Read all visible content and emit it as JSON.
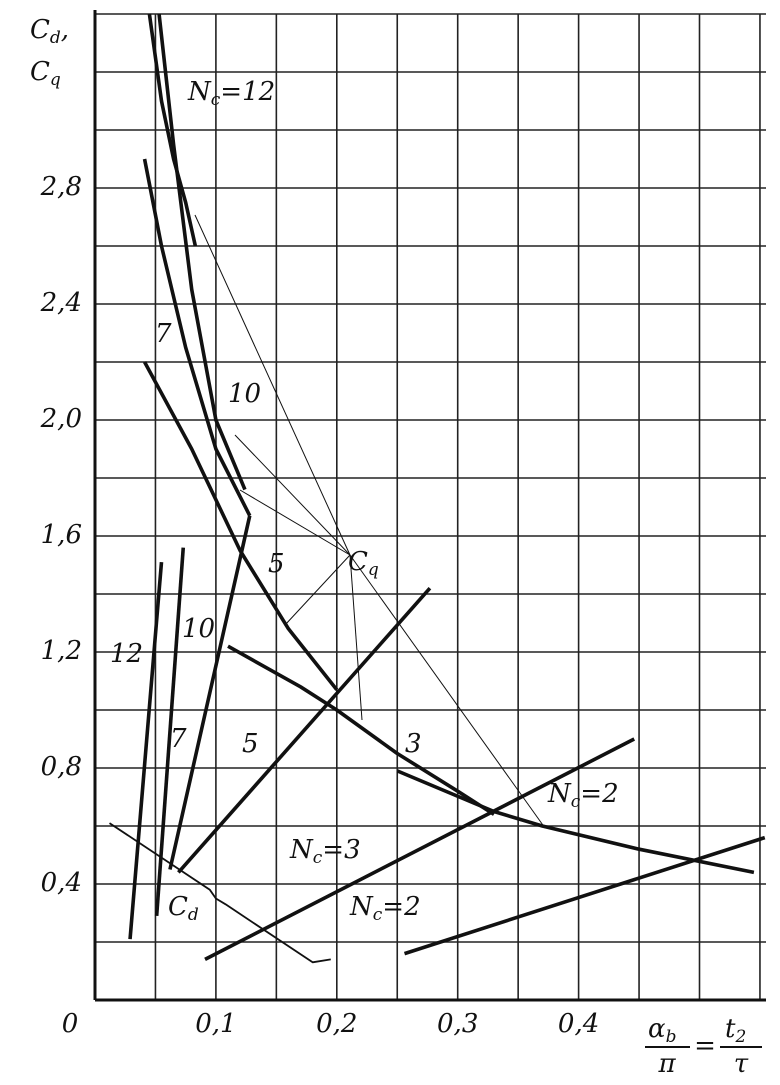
{
  "chart_data": {
    "type": "line",
    "y_label": [
      {
        "main": "C",
        "sub": "d",
        "tail": ","
      },
      {
        "main": "C",
        "sub": "q"
      }
    ],
    "x_label": {
      "num1": "α",
      "sub1": "b",
      "den1": "π",
      "eq": "=",
      "num2": "t",
      "sub2": "2",
      "den2": "τ"
    },
    "xlim": [
      0,
      0.555
    ],
    "ylim": [
      0,
      3.4
    ],
    "xticks": [
      {
        "value": 0,
        "label": "0"
      },
      {
        "value": 0.1,
        "label": "0,1"
      },
      {
        "value": 0.2,
        "label": "0,2"
      },
      {
        "value": 0.3,
        "label": "0,3"
      },
      {
        "value": 0.4,
        "label": "0,4"
      }
    ],
    "yticks": [
      {
        "value": 0.4,
        "label": "0,4"
      },
      {
        "value": 0.8,
        "label": "0,8"
      },
      {
        "value": 1.2,
        "label": "1,2"
      },
      {
        "value": 1.6,
        "label": "1,6"
      },
      {
        "value": 2.0,
        "label": "2,0"
      },
      {
        "value": 2.4,
        "label": "2,4"
      },
      {
        "value": 2.8,
        "label": "2,8"
      }
    ],
    "x_grid": [
      0.05,
      0.1,
      0.15,
      0.2,
      0.25,
      0.3,
      0.35,
      0.4,
      0.45,
      0.5,
      0.55
    ],
    "y_grid": [
      0.2,
      0.4,
      0.6,
      0.8,
      1.0,
      1.2,
      1.4,
      1.6,
      1.8,
      2.0,
      2.2,
      2.4,
      2.6,
      2.8,
      3.0,
      3.2,
      3.4
    ],
    "grid": true,
    "color": "#111111",
    "annotation": {
      "main": "C",
      "sub": "q"
    },
    "series": [
      {
        "group": "Cq",
        "label": {
          "main": "N",
          "sub": "c",
          "rest": "=12"
        },
        "x": [
          0.045,
          0.055,
          0.065,
          0.075,
          0.083
        ],
        "values": [
          3.4,
          3.1,
          2.9,
          2.75,
          2.6
        ]
      },
      {
        "group": "Cq",
        "label": {
          "main": "10"
        },
        "x": [
          0.053,
          0.065,
          0.08,
          0.1,
          0.124
        ],
        "values": [
          3.4,
          2.95,
          2.45,
          2.0,
          1.76
        ]
      },
      {
        "group": "Cq",
        "label": {
          "main": "7"
        },
        "x": [
          0.041,
          0.055,
          0.075,
          0.1,
          0.128
        ],
        "values": [
          2.9,
          2.6,
          2.25,
          1.9,
          1.67
        ]
      },
      {
        "group": "Cq",
        "label": {
          "main": "5"
        },
        "x": [
          0.041,
          0.08,
          0.12,
          0.16,
          0.2
        ],
        "values": [
          2.2,
          1.9,
          1.55,
          1.28,
          1.07
        ]
      },
      {
        "group": "Cq",
        "label": {
          "main": "3"
        },
        "x": [
          0.11,
          0.17,
          0.2,
          0.25,
          0.3,
          0.33
        ],
        "values": [
          1.22,
          1.08,
          1.0,
          0.85,
          0.72,
          0.64
        ]
      },
      {
        "group": "Cq",
        "label": {
          "main": "N",
          "sub": "c",
          "rest": "=2"
        },
        "x": [
          0.25,
          0.33,
          0.37,
          0.45,
          0.545
        ],
        "values": [
          0.79,
          0.65,
          0.6,
          0.52,
          0.44
        ]
      },
      {
        "group": "Cd",
        "label": {
          "main": "12"
        },
        "x": [
          0.029,
          0.055
        ],
        "values": [
          0.21,
          1.51
        ]
      },
      {
        "group": "Cd",
        "label": {
          "main": "7"
        },
        "x": [
          0.051,
          0.073
        ],
        "values": [
          0.29,
          1.56
        ]
      },
      {
        "group": "Cd",
        "label": {
          "main": "10"
        },
        "x": [
          0.062,
          0.128
        ],
        "values": [
          0.45,
          1.67
        ]
      },
      {
        "group": "Cd",
        "label": {
          "main": "5"
        },
        "x": [
          0.069,
          0.277
        ],
        "values": [
          0.44,
          1.42
        ]
      },
      {
        "group": "Cd",
        "label": {
          "main": "N",
          "sub": "c",
          "rest": "=3"
        },
        "x": [
          0.091,
          0.446
        ],
        "values": [
          0.14,
          0.9
        ]
      },
      {
        "group": "Cd",
        "label": {
          "main": "N",
          "sub": "c",
          "rest": "=2"
        },
        "x": [
          0.256,
          0.554
        ],
        "values": [
          0.16,
          0.56
        ]
      },
      {
        "group": "Cd",
        "label": {
          "main": "C",
          "sub": "d"
        },
        "x": [
          0.012,
          0.095,
          0.1,
          0.108,
          0.18,
          0.195
        ],
        "values": [
          0.61,
          0.38,
          0.35,
          0.33,
          0.13,
          0.14
        ]
      }
    ]
  }
}
